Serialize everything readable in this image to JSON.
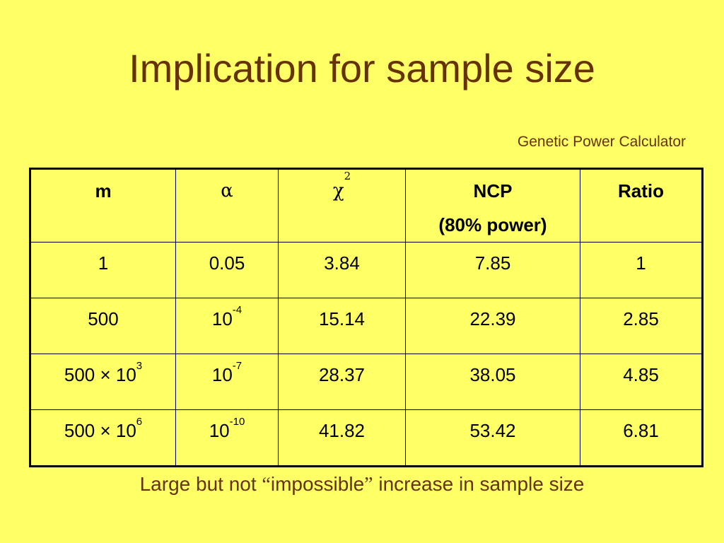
{
  "slide": {
    "title": "Implication for sample size",
    "source": "Genetic Power Calculator",
    "footer_pre": "Large but not ",
    "footer_open_quote": "“",
    "footer_word": "impossible",
    "footer_close_quote": "”",
    "footer_post": " increase in sample size"
  },
  "table": {
    "headers": {
      "m": "m",
      "alpha": "α",
      "chi": "χ",
      "chi_sup": "2",
      "ncp_line1": "NCP",
      "ncp_line2": "(80% power)",
      "ratio": "Ratio"
    },
    "rows": [
      {
        "m": "1",
        "m_sup": "",
        "alpha": "0.05",
        "alpha_sup": "",
        "chi2": "3.84",
        "ncp": "7.85",
        "ratio": "1"
      },
      {
        "m": "500",
        "m_sup": "",
        "alpha": "10",
        "alpha_sup": "-4",
        "chi2": "15.14",
        "ncp": "22.39",
        "ratio": "2.85"
      },
      {
        "m": "500 × 10",
        "m_sup": "3",
        "alpha": "10",
        "alpha_sup": "-7",
        "chi2": "28.37",
        "ncp": "38.05",
        "ratio": "4.85"
      },
      {
        "m": "500 × 10",
        "m_sup": "6",
        "alpha": "10",
        "alpha_sup": "-10",
        "chi2": "41.82",
        "ncp": "53.42",
        "ratio": "6.81"
      }
    ]
  },
  "colors": {
    "background": "#ffff66",
    "title_text": "#663300",
    "table_text": "#000000"
  }
}
